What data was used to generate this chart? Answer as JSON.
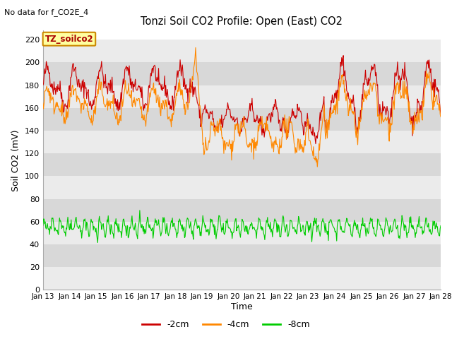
{
  "title": "Tonzi Soil CO2 Profile: Open (East) CO2",
  "top_left_text": "No data for f_CO2E_4",
  "legend_box_text": "TZ_soilco2",
  "xlabel": "Time",
  "ylabel": "Soil CO2 (mV)",
  "ylim": [
    0,
    228
  ],
  "yticks": [
    0,
    20,
    40,
    60,
    80,
    100,
    120,
    140,
    160,
    180,
    200,
    220
  ],
  "x_labels": [
    "Jan 13",
    "Jan 14",
    "Jan 15",
    "Jan 16",
    "Jan 17",
    "Jan 18",
    "Jan 19",
    "Jan 20",
    "Jan 21",
    "Jan 22",
    "Jan 23",
    "Jan 24",
    "Jan 25",
    "Jan 26",
    "Jan 27",
    "Jan 28"
  ],
  "num_days": 15,
  "points_per_day": 48,
  "color_2cm": "#CC0000",
  "color_4cm": "#FF8800",
  "color_8cm": "#00CC00",
  "line_width": 0.8,
  "bg_color": "#FFFFFF",
  "legend_entries": [
    "-2cm",
    "-4cm",
    "-8cm"
  ],
  "legend_colors": [
    "#CC0000",
    "#FF8800",
    "#00CC00"
  ],
  "band_light": "#EBEBEB",
  "band_dark": "#D8D8D8"
}
